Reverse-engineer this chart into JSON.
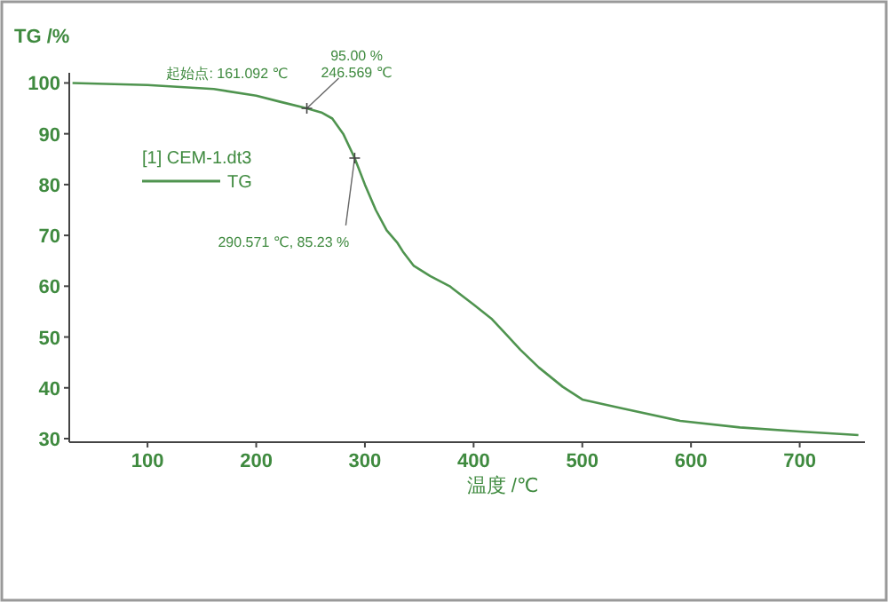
{
  "chart_data": {
    "type": "line",
    "ylabel": "TG /%",
    "xlabel": "温度 /℃",
    "legend_title": "[1] CEM-1.dt3",
    "legend": "left",
    "grid": false,
    "marker": "none",
    "line_style": "solid",
    "xlim": [
      28,
      760
    ],
    "ylim": [
      29.3,
      102
    ],
    "xticks": [
      100,
      200,
      300,
      400,
      500,
      600,
      700
    ],
    "yticks": [
      30,
      40,
      50,
      60,
      70,
      80,
      90,
      100
    ],
    "series": [
      {
        "name": "TG",
        "color": "#4f944f",
        "x": [
          31,
          100,
          161,
          200,
          222,
          246.569,
          260,
          270,
          280,
          290.571,
          300,
          310,
          320,
          330,
          335,
          345,
          360,
          378,
          400,
          417,
          430,
          443,
          460,
          482,
          500,
          536,
          590,
          645,
          700,
          754
        ],
        "values": [
          100,
          99.6,
          98.8,
          97.5,
          96.3,
          95.0,
          94.2,
          93.0,
          90.0,
          85.23,
          80,
          75,
          71,
          68.5,
          66.8,
          64,
          62,
          60,
          56.4,
          53.5,
          50.5,
          47.5,
          44,
          40.2,
          37.7,
          36,
          33.5,
          32.2,
          31.4,
          30.7
        ]
      }
    ],
    "annotations": [
      "起始点: 161.092 ℃",
      {
        "text": "95.00 %\n246.569 ℃",
        "x": 246.569,
        "y": 95.0
      },
      {
        "text": "290.571 ℃, 85.23 %",
        "x": 290.571,
        "y": 85.23
      }
    ]
  }
}
